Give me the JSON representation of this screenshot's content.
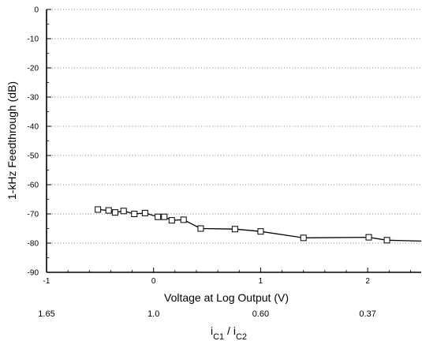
{
  "chart_data": {
    "type": "line",
    "xlabel": "Voltage at Log Output (V)",
    "ylabel": "1-kHz Feedthrough (dB)",
    "xlim": [
      -1,
      2.5
    ],
    "ylim": [
      -90,
      0
    ],
    "xticks": [
      -1,
      0,
      1,
      2
    ],
    "xtick_labels": [
      "-1",
      "0",
      "1",
      "2"
    ],
    "yticks": [
      0,
      -10,
      -20,
      -30,
      -40,
      -50,
      -60,
      -70,
      -80,
      -90
    ],
    "ytick_labels": [
      "0",
      "-10",
      "-20",
      "-30",
      "-40",
      "-50",
      "-60",
      "-70",
      "-80",
      "-90"
    ],
    "grid": "horizontal dotted",
    "marker": "open square",
    "series": [
      {
        "x": [
          -0.52,
          -0.42,
          -0.36,
          -0.28,
          -0.18,
          -0.08,
          0.04,
          0.1,
          0.17,
          0.28,
          0.44,
          0.76,
          1.0,
          1.4,
          2.01,
          2.18,
          2.5
        ],
        "y": [
          -68.5,
          -68.8,
          -69.5,
          -69.0,
          -70.0,
          -69.7,
          -71.0,
          -71.0,
          -72.2,
          -72.0,
          -75.0,
          -75.2,
          -76.0,
          -78.2,
          -78.0,
          -79.0,
          -79.3
        ],
        "marker_count": 16
      }
    ],
    "secondary_axis": {
      "title_main": "i",
      "title_sub1": "C1",
      "title_div": " / i",
      "title_sub2": "C2",
      "ticks": [
        {
          "x": -1,
          "label": "1.65"
        },
        {
          "x": 0,
          "label": "1.0"
        },
        {
          "x": 1,
          "label": "0.60"
        },
        {
          "x": 2,
          "label": "0.37"
        }
      ]
    }
  },
  "colors": {
    "line": "#000000",
    "grid": "#555555",
    "background": "#ffffff"
  }
}
